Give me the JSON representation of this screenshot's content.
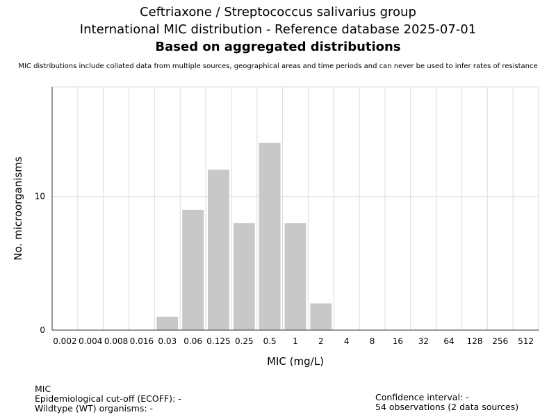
{
  "title": "Ceftriaxone / Streptococcus salivarius group",
  "subtitle": "International MIC distribution - Reference database 2025-07-01",
  "subtitle2": "Based on aggregated distributions",
  "disclaimer": "MIC distributions include collated data from multiple sources, geographical areas and time periods and can never be used to infer rates of resistance",
  "chart_data": {
    "type": "bar",
    "xlabel": "MIC (mg/L)",
    "ylabel": "No. microorganisms",
    "categories": [
      "0.002",
      "0.004",
      "0.008",
      "0.016",
      "0.03",
      "0.06",
      "0.125",
      "0.25",
      "0.5",
      "1",
      "2",
      "4",
      "8",
      "16",
      "32",
      "64",
      "128",
      "256",
      "512"
    ],
    "values": [
      0,
      0,
      0,
      0,
      1,
      9,
      12,
      8,
      14,
      8,
      2,
      0,
      0,
      0,
      0,
      0,
      0,
      0,
      0
    ],
    "yticks": [
      0,
      10
    ],
    "ylim": [
      0,
      18.2
    ],
    "grid": true,
    "bar_color": "#c8c8c8"
  },
  "footer": {
    "mic_label": "MIC",
    "ecoff": "Epidemiological cut-off (ECOFF): -",
    "wt": "Wildtype (WT) organisms:  -",
    "ci": "Confidence interval: -",
    "observations": "54 observations (2 data sources)"
  }
}
